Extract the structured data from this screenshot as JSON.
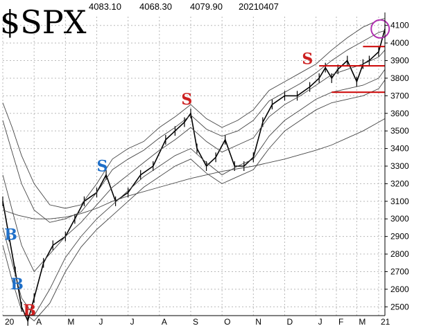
{
  "header": {
    "symbol": "$SPX",
    "values": [
      "4083.10",
      "4068.30",
      "4079.90"
    ],
    "date": "20210407"
  },
  "chart_data": {
    "type": "line",
    "title": "$SPX",
    "xlabel": "",
    "ylabel": "",
    "ylim": [
      2450,
      4150
    ],
    "y_ticks": [
      2500,
      2600,
      2700,
      2800,
      2900,
      3000,
      3100,
      3200,
      3300,
      3400,
      3500,
      3600,
      3700,
      3800,
      3900,
      4000,
      4100
    ],
    "x_range": [
      0,
      12.2
    ],
    "x_ticks": [
      {
        "label": "20",
        "pos": 0
      },
      {
        "label": "A",
        "pos": 1
      },
      {
        "label": "M",
        "pos": 2
      },
      {
        "label": "J",
        "pos": 3
      },
      {
        "label": "J",
        "pos": 4
      },
      {
        "label": "A",
        "pos": 5
      },
      {
        "label": "S",
        "pos": 6
      },
      {
        "label": "O",
        "pos": 7
      },
      {
        "label": "N",
        "pos": 8
      },
      {
        "label": "D",
        "pos": 9
      },
      {
        "label": "J",
        "pos": 10
      },
      {
        "label": "F",
        "pos": 10.65
      },
      {
        "label": "M",
        "pos": 11.3
      },
      {
        "label": "21",
        "pos": 12
      }
    ],
    "grid": true,
    "series": [
      {
        "role": "price",
        "x": [
          0,
          0.2,
          0.4,
          0.6,
          0.8,
          1,
          1.3,
          1.6,
          2,
          2.3,
          2.6,
          3,
          3.3,
          3.6,
          4,
          4.4,
          4.8,
          5.2,
          5.5,
          5.8,
          6,
          6.2,
          6.5,
          6.8,
          7.1,
          7.4,
          7.7,
          8,
          8.3,
          8.6,
          9,
          9.4,
          9.8,
          10.1,
          10.3,
          10.5,
          10.7,
          11,
          11.3,
          11.5,
          11.7,
          12,
          12.2
        ],
        "y": [
          3100,
          2900,
          2700,
          2500,
          2420,
          2550,
          2750,
          2850,
          2900,
          3000,
          3100,
          3150,
          3250,
          3100,
          3150,
          3250,
          3300,
          3450,
          3500,
          3550,
          3600,
          3400,
          3300,
          3350,
          3450,
          3300,
          3300,
          3350,
          3550,
          3650,
          3700,
          3700,
          3750,
          3800,
          3860,
          3800,
          3850,
          3900,
          3780,
          3880,
          3900,
          3950,
          4080
        ]
      },
      {
        "role": "upper-band-outer",
        "x": [
          0,
          0.3,
          0.6,
          1,
          1.5,
          2,
          2.5,
          3,
          3.5,
          4,
          4.5,
          5,
          5.5,
          6,
          6.5,
          7,
          7.5,
          8,
          8.5,
          9,
          9.5,
          10,
          10.5,
          11,
          11.5,
          12,
          12.2
        ],
        "y": [
          3660,
          3520,
          3360,
          3200,
          3080,
          3060,
          3080,
          3200,
          3340,
          3400,
          3440,
          3520,
          3580,
          3650,
          3570,
          3520,
          3560,
          3620,
          3730,
          3780,
          3830,
          3880,
          3960,
          4030,
          4090,
          4130,
          4140
        ]
      },
      {
        "role": "upper-band-inner",
        "x": [
          0,
          0.3,
          0.6,
          1,
          1.5,
          2,
          2.5,
          3,
          3.5,
          4,
          4.5,
          5,
          5.5,
          6,
          6.5,
          7,
          7.5,
          8,
          8.5,
          9,
          9.5,
          10,
          10.5,
          11,
          11.5,
          12,
          12.2
        ],
        "y": [
          3560,
          3380,
          3200,
          3050,
          2980,
          3000,
          3040,
          3150,
          3280,
          3340,
          3390,
          3460,
          3520,
          3590,
          3510,
          3470,
          3500,
          3560,
          3670,
          3720,
          3770,
          3830,
          3900,
          3960,
          4010,
          4060,
          4070
        ]
      },
      {
        "role": "middle-band",
        "x": [
          0,
          0.3,
          0.6,
          1,
          1.5,
          2,
          2.5,
          3,
          3.5,
          4,
          4.5,
          5,
          5.5,
          6,
          6.5,
          7,
          7.5,
          8,
          8.5,
          9,
          9.5,
          10,
          10.5,
          11,
          11.5,
          12,
          12.2
        ],
        "y": [
          3250,
          3050,
          2850,
          2700,
          2800,
          2900,
          2980,
          3080,
          3180,
          3250,
          3320,
          3390,
          3450,
          3520,
          3440,
          3380,
          3420,
          3460,
          3580,
          3650,
          3700,
          3760,
          3820,
          3850,
          3880,
          3920,
          3960
        ]
      },
      {
        "role": "lower-band-inner",
        "x": [
          0,
          0.3,
          0.6,
          1,
          1.5,
          2,
          2.5,
          3,
          3.5,
          4,
          4.5,
          5,
          5.5,
          6,
          6.5,
          7,
          7.5,
          8,
          8.5,
          9,
          9.5,
          10,
          10.5,
          11,
          11.5,
          12,
          12.2
        ],
        "y": [
          2950,
          2750,
          2550,
          2450,
          2600,
          2780,
          2900,
          3000,
          3080,
          3160,
          3240,
          3300,
          3360,
          3400,
          3320,
          3250,
          3300,
          3340,
          3470,
          3560,
          3620,
          3680,
          3720,
          3740,
          3760,
          3800,
          3850
        ]
      },
      {
        "role": "lower-band-outer",
        "x": [
          0,
          0.3,
          0.6,
          1,
          1.5,
          2,
          2.5,
          3,
          3.5,
          4,
          4.5,
          5,
          5.5,
          6,
          6.5,
          7,
          7.5,
          8,
          8.5,
          9,
          9.5,
          10,
          10.5,
          11,
          11.5,
          12,
          12.2
        ],
        "y": [
          2850,
          2650,
          2480,
          2420,
          2520,
          2700,
          2840,
          2940,
          3020,
          3100,
          3180,
          3240,
          3300,
          3340,
          3260,
          3200,
          3240,
          3280,
          3400,
          3500,
          3560,
          3620,
          3660,
          3680,
          3700,
          3740,
          3790
        ]
      },
      {
        "role": "moving-average-200",
        "x": [
          0,
          0.5,
          1,
          1.5,
          2,
          2.5,
          3,
          3.5,
          4,
          5,
          6,
          7,
          8,
          9,
          10,
          10.5,
          11,
          11.5,
          12,
          12.2
        ],
        "y": [
          3050,
          3020,
          3000,
          3000,
          3010,
          3030,
          3060,
          3100,
          3130,
          3180,
          3230,
          3270,
          3300,
          3340,
          3390,
          3420,
          3460,
          3500,
          3550,
          3570
        ]
      }
    ],
    "horizontal_lines": [
      {
        "y": 3980,
        "x_from": 11.5,
        "x_to": 12.2,
        "color": "#cc0000"
      },
      {
        "y": 3870,
        "x_from": 10.1,
        "x_to": 12.2,
        "color": "#cc0000"
      },
      {
        "y": 3720,
        "x_from": 10.5,
        "x_to": 12.2,
        "color": "#cc0000"
      }
    ],
    "annotations": [
      {
        "text": "B",
        "x": 0.05,
        "y": 2880,
        "color": "#1f6fc8"
      },
      {
        "text": "B",
        "x": 0.25,
        "y": 2600,
        "color": "#1f6fc8"
      },
      {
        "text": "B",
        "x": 0.65,
        "y": 2450,
        "color": "#cc2020"
      },
      {
        "text": "S",
        "x": 3.0,
        "y": 3270,
        "color": "#1f6fc8"
      },
      {
        "text": "S",
        "x": 5.7,
        "y": 3650,
        "color": "#cc2020"
      },
      {
        "text": "S",
        "x": 9.55,
        "y": 3880,
        "color": "#cc2020"
      }
    ],
    "circle": {
      "x": 12.05,
      "y": 4080,
      "color": "#b030b0"
    }
  }
}
